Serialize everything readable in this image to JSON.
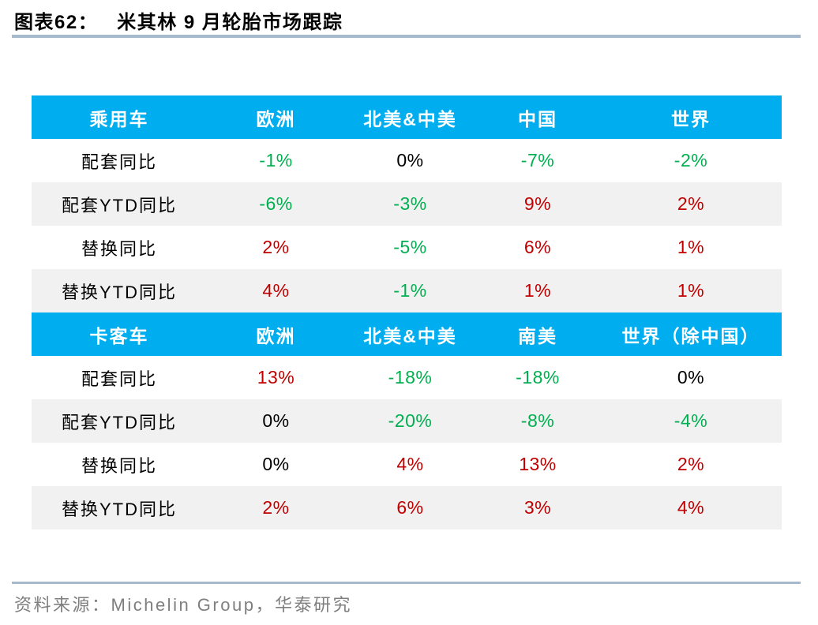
{
  "page": {
    "title_label": "图表62：",
    "title_text": "米其林 9 月轮胎市场跟踪",
    "source": "资料来源：Michelin Group，华泰研究"
  },
  "colors": {
    "header_blue": "#00aeef",
    "up_red": "#c00000",
    "down_green": "#00b050",
    "neutral_black": "#000000",
    "stripe_gray": "#f1f1f1",
    "rule_blue_gray": "#a7bacd",
    "source_gray": "#7f7f7f"
  },
  "chart_data": [
    {
      "type": "table",
      "title": "乘用车",
      "columns": [
        "乘用车",
        "欧洲",
        "北美&中美",
        "中国",
        "世界"
      ],
      "rows": [
        {
          "label": "配套同比",
          "values": [
            {
              "text": "-1%",
              "tone": "green"
            },
            {
              "text": "0%",
              "tone": "black"
            },
            {
              "text": "-7%",
              "tone": "green"
            },
            {
              "text": "-2%",
              "tone": "green"
            }
          ]
        },
        {
          "label": "配套YTD同比",
          "values": [
            {
              "text": "-6%",
              "tone": "green"
            },
            {
              "text": "-3%",
              "tone": "green"
            },
            {
              "text": "9%",
              "tone": "red"
            },
            {
              "text": "2%",
              "tone": "red"
            }
          ]
        },
        {
          "label": "替换同比",
          "values": [
            {
              "text": "2%",
              "tone": "red"
            },
            {
              "text": "-5%",
              "tone": "green"
            },
            {
              "text": "6%",
              "tone": "red"
            },
            {
              "text": "1%",
              "tone": "red"
            }
          ]
        },
        {
          "label": "替换YTD同比",
          "values": [
            {
              "text": "4%",
              "tone": "red"
            },
            {
              "text": "-1%",
              "tone": "green"
            },
            {
              "text": "1%",
              "tone": "red"
            },
            {
              "text": "1%",
              "tone": "red"
            }
          ]
        }
      ]
    },
    {
      "type": "table",
      "title": "卡客车",
      "columns": [
        "卡客车",
        "欧洲",
        "北美&中美",
        "南美",
        "世界（除中国）"
      ],
      "rows": [
        {
          "label": "配套同比",
          "values": [
            {
              "text": "13%",
              "tone": "red"
            },
            {
              "text": "-18%",
              "tone": "green"
            },
            {
              "text": "-18%",
              "tone": "green"
            },
            {
              "text": "0%",
              "tone": "black"
            }
          ]
        },
        {
          "label": "配套YTD同比",
          "values": [
            {
              "text": "0%",
              "tone": "black"
            },
            {
              "text": "-20%",
              "tone": "green"
            },
            {
              "text": "-8%",
              "tone": "green"
            },
            {
              "text": "-4%",
              "tone": "green"
            }
          ]
        },
        {
          "label": "替换同比",
          "values": [
            {
              "text": "0%",
              "tone": "black"
            },
            {
              "text": "4%",
              "tone": "red"
            },
            {
              "text": "13%",
              "tone": "red"
            },
            {
              "text": "2%",
              "tone": "red"
            }
          ]
        },
        {
          "label": "替换YTD同比",
          "values": [
            {
              "text": "2%",
              "tone": "red"
            },
            {
              "text": "6%",
              "tone": "red"
            },
            {
              "text": "3%",
              "tone": "red"
            },
            {
              "text": "4%",
              "tone": "red"
            }
          ]
        }
      ]
    }
  ]
}
